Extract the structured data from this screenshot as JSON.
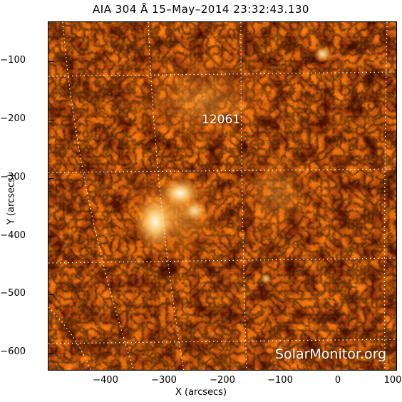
{
  "title": "AIA 304 Å 15–May–2014 23:32:43.130",
  "x_axis": {
    "label": "X (arcsecs)",
    "ticks": [
      "−400",
      "−300",
      "−200",
      "−100",
      "0",
      "100"
    ]
  },
  "y_axis": {
    "label": "Y (arcsecs)",
    "ticks": [
      "−100",
      "−200",
      "−300",
      "−400",
      "−500",
      "−600"
    ]
  },
  "active_region": "12061",
  "watermark": "SolarMonitor.org",
  "colors": {
    "dark": "#2a0500",
    "mid": "#b42a00",
    "bright": "#ff9a2a",
    "hot": "#fff4d6",
    "grid": "#ffffff"
  }
}
